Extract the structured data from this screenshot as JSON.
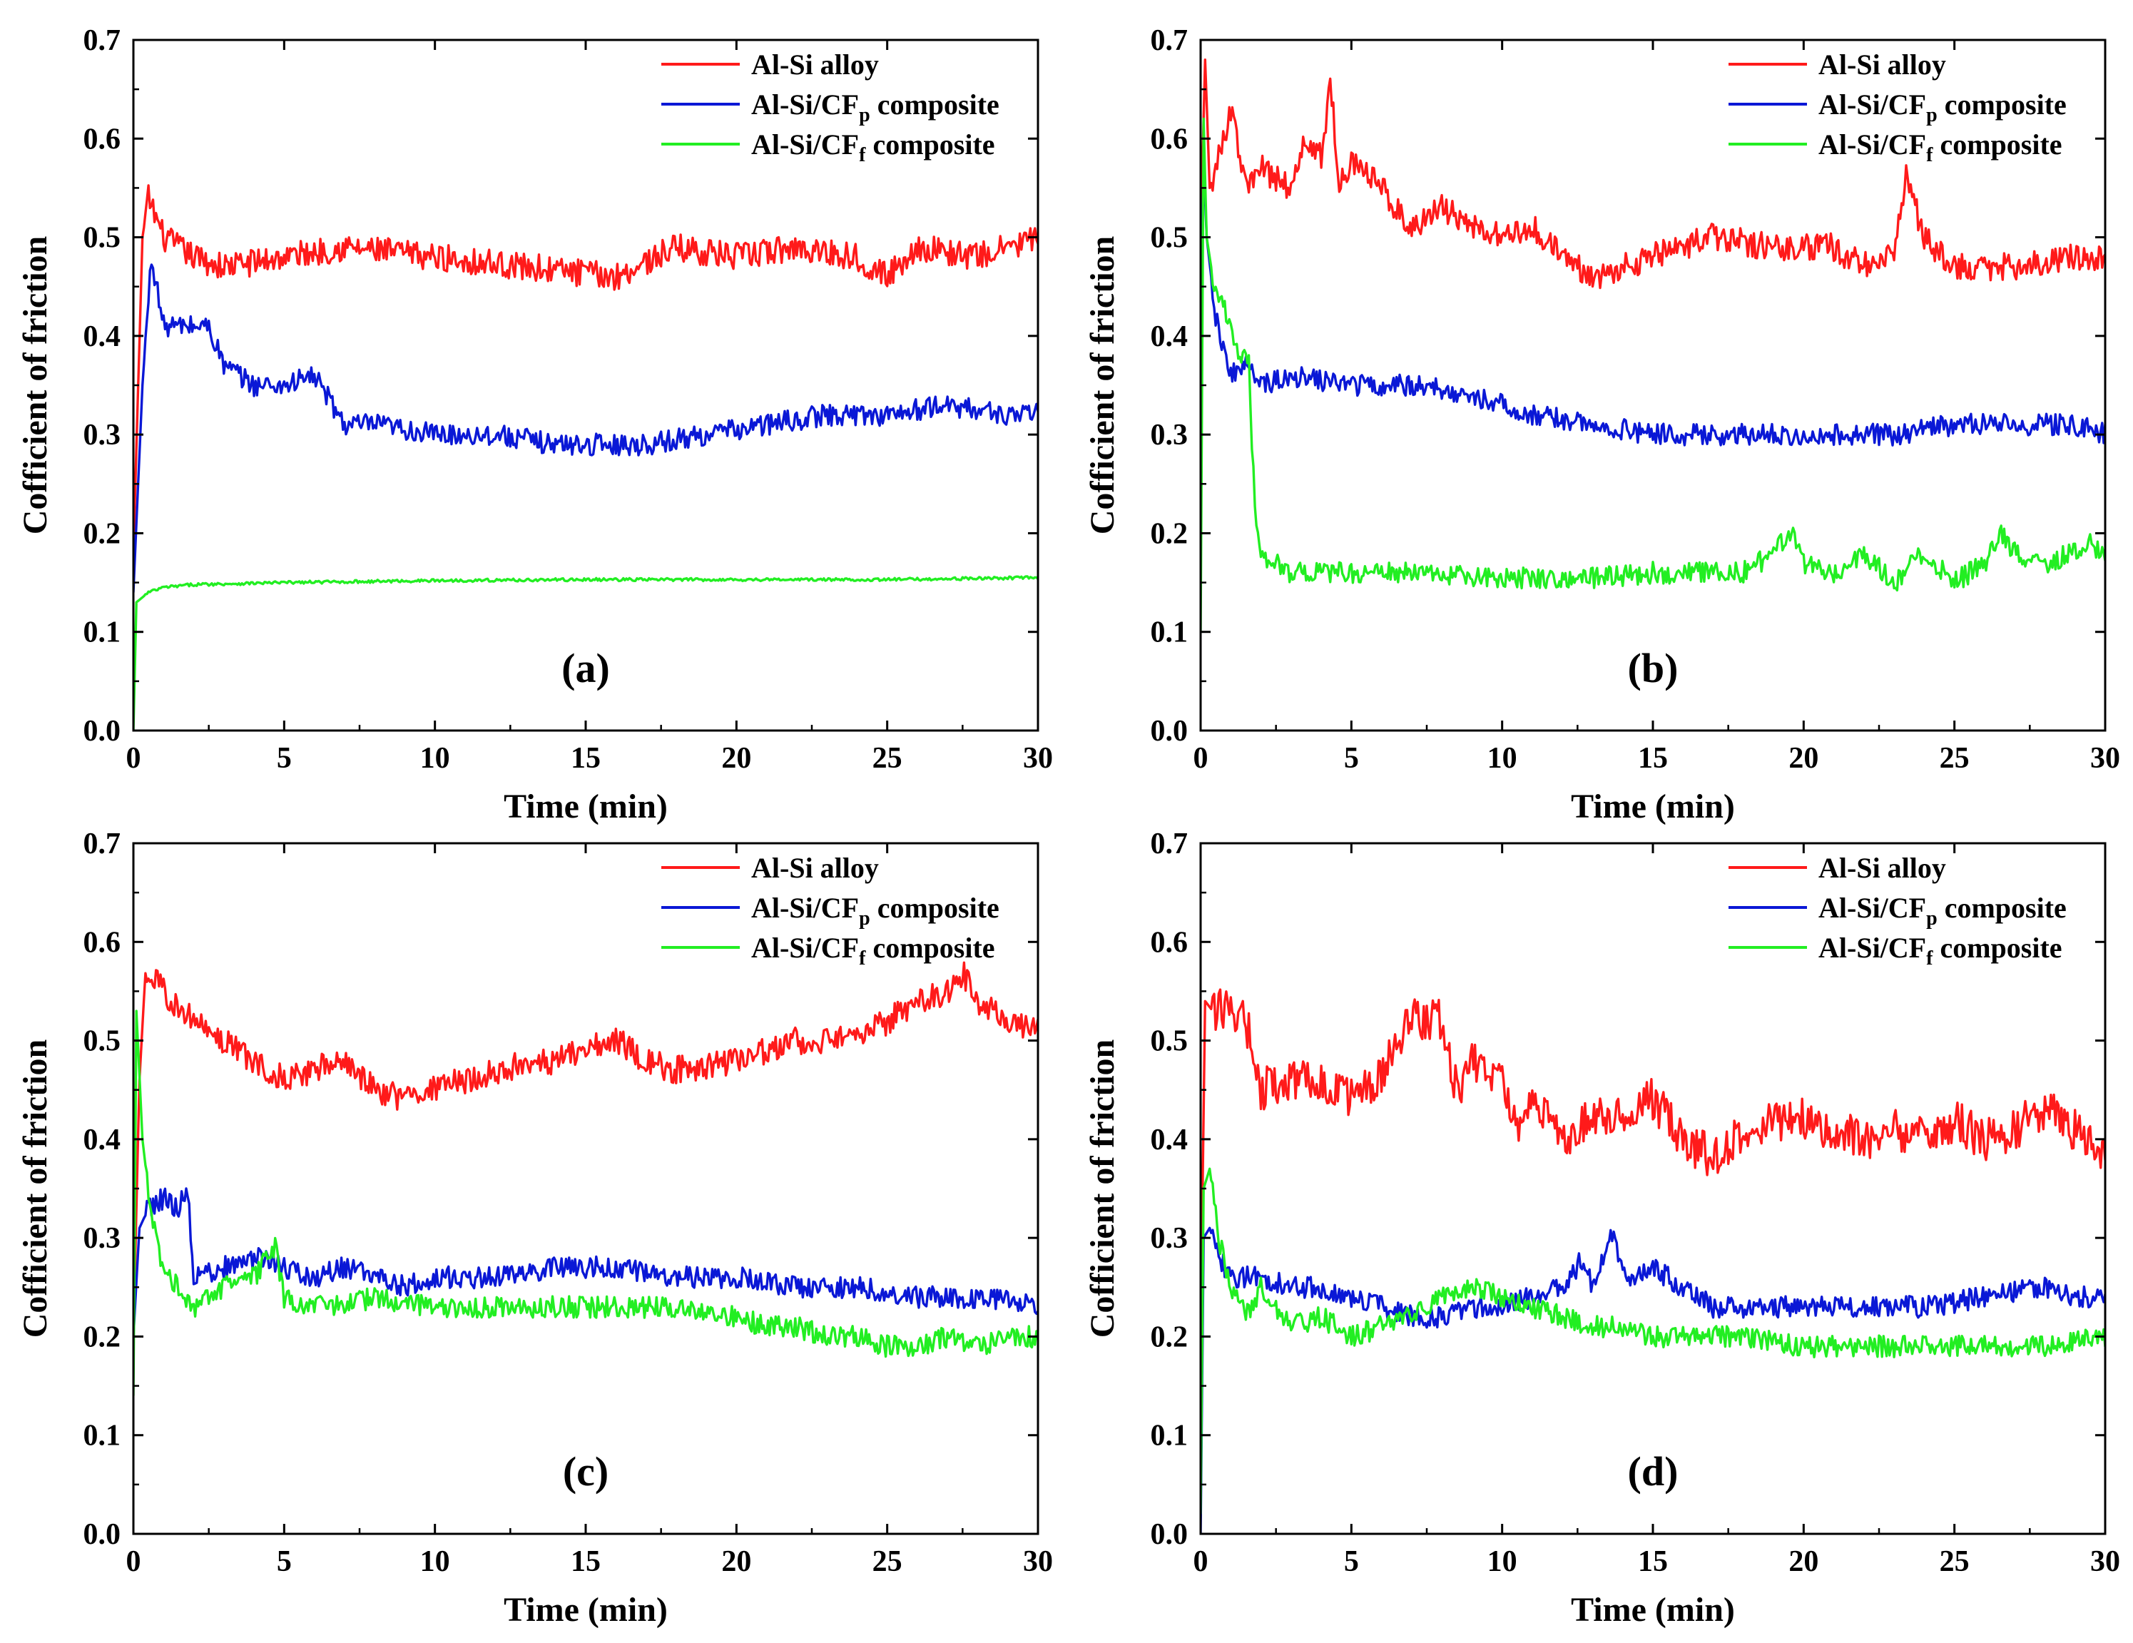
{
  "chart_data": [
    {
      "type": "line",
      "panel": "(a)",
      "xlabel": "Time (min)",
      "ylabel": "Cofficient of friction",
      "xlim": [
        0,
        30
      ],
      "ylim": [
        0,
        0.7
      ],
      "xticks": [
        "0",
        "5",
        "10",
        "15",
        "20",
        "25",
        "30"
      ],
      "yticks": [
        "0.0",
        "0.1",
        "0.2",
        "0.3",
        "0.4",
        "0.5",
        "0.6",
        "0.7"
      ],
      "legend": {
        "position": "top-right"
      },
      "series": [
        {
          "name": "Al-Si alloy",
          "label_main": "Al-Si alloy",
          "label_sub": "",
          "label_tail": "",
          "color": "#ff1a1a",
          "x": [
            0,
            0.3,
            0.5,
            1,
            2,
            3,
            5,
            7,
            10,
            13,
            16,
            18,
            20,
            22,
            24,
            25,
            26,
            28,
            30
          ],
          "y": [
            0.18,
            0.5,
            0.54,
            0.5,
            0.48,
            0.47,
            0.48,
            0.49,
            0.48,
            0.47,
            0.46,
            0.49,
            0.48,
            0.49,
            0.48,
            0.46,
            0.49,
            0.48,
            0.5
          ]
        },
        {
          "name": "Al-Si/CFp composite",
          "label_main": "Al-Si/CF",
          "label_sub": "p",
          "label_tail": " composite",
          "color": "#0a18d6",
          "x": [
            0,
            0.3,
            0.6,
            1,
            2,
            2.5,
            3,
            4,
            5,
            6,
            7,
            8,
            10,
            12,
            14,
            16,
            17,
            19,
            21,
            23,
            25,
            27,
            29,
            30
          ],
          "y": [
            0.14,
            0.35,
            0.48,
            0.41,
            0.41,
            0.41,
            0.37,
            0.35,
            0.35,
            0.36,
            0.31,
            0.31,
            0.3,
            0.3,
            0.29,
            0.29,
            0.29,
            0.3,
            0.31,
            0.32,
            0.32,
            0.33,
            0.32,
            0.32
          ]
        },
        {
          "name": "Al-Si/CFf composite",
          "label_main": "Al-Si/CF",
          "label_sub": "f",
          "label_tail": "  composite",
          "color": "#22ee22",
          "x": [
            0,
            0.1,
            0.5,
            1,
            2,
            5,
            10,
            15,
            20,
            25,
            30
          ],
          "y": [
            0,
            0.13,
            0.14,
            0.145,
            0.148,
            0.15,
            0.152,
            0.153,
            0.153,
            0.153,
            0.155
          ]
        }
      ]
    },
    {
      "type": "line",
      "panel": "(b)",
      "xlabel": "Time (min)",
      "ylabel": "Cofficient of friction",
      "xlim": [
        0,
        30
      ],
      "ylim": [
        0,
        0.7
      ],
      "xticks": [
        "0",
        "5",
        "10",
        "15",
        "20",
        "25",
        "30"
      ],
      "yticks": [
        "0.0",
        "0.1",
        "0.2",
        "0.3",
        "0.4",
        "0.5",
        "0.6",
        "0.7"
      ],
      "legend": {
        "position": "top-right"
      },
      "series": [
        {
          "name": "Al-Si alloy",
          "label_main": "Al-Si alloy",
          "label_sub": "",
          "label_tail": "",
          "color": "#ff1a1a",
          "x": [
            0,
            0.15,
            0.3,
            0.6,
            1,
            1.5,
            2,
            3,
            3.5,
            4,
            4.3,
            4.6,
            5,
            6,
            7,
            8,
            9,
            10,
            11,
            12,
            13,
            15,
            17,
            19,
            21,
            22,
            23,
            23.4,
            24,
            25,
            27,
            29,
            30
          ],
          "y": [
            0.5,
            0.68,
            0.55,
            0.58,
            0.63,
            0.55,
            0.57,
            0.55,
            0.6,
            0.58,
            0.66,
            0.55,
            0.58,
            0.55,
            0.51,
            0.53,
            0.51,
            0.5,
            0.51,
            0.48,
            0.46,
            0.48,
            0.5,
            0.49,
            0.49,
            0.47,
            0.49,
            0.56,
            0.5,
            0.47,
            0.47,
            0.48,
            0.48
          ]
        },
        {
          "name": "Al-Si/CFp composite",
          "label_main": "Al-Si/CF",
          "label_sub": "p",
          "label_tail": " composite",
          "color": "#0a18d6",
          "x": [
            0,
            0.1,
            0.2,
            0.5,
            1,
            1.5,
            2,
            3,
            5,
            7,
            9,
            10,
            11,
            13,
            15,
            17,
            19,
            21,
            23,
            25,
            27,
            29,
            30
          ],
          "y": [
            0.35,
            0.58,
            0.5,
            0.42,
            0.36,
            0.37,
            0.35,
            0.36,
            0.35,
            0.35,
            0.34,
            0.33,
            0.32,
            0.31,
            0.3,
            0.3,
            0.3,
            0.3,
            0.3,
            0.31,
            0.31,
            0.31,
            0.3
          ]
        },
        {
          "name": "Al-Si/CFf composite",
          "label_main": "Al-Si/CF",
          "label_sub": "f",
          "label_tail": "  composite",
          "color": "#22ee22",
          "x": [
            0,
            0.1,
            0.2,
            0.4,
            0.6,
            1,
            1.3,
            1.6,
            1.8,
            2,
            2.5,
            3,
            5,
            7,
            9,
            11,
            13,
            15,
            17,
            18,
            19,
            19.6,
            20,
            21,
            22,
            23,
            24,
            25,
            26,
            26.5,
            27,
            28,
            29,
            29.5,
            30
          ],
          "y": [
            0.1,
            0.62,
            0.5,
            0.46,
            0.44,
            0.41,
            0.38,
            0.37,
            0.22,
            0.18,
            0.17,
            0.16,
            0.16,
            0.16,
            0.155,
            0.155,
            0.155,
            0.16,
            0.16,
            0.16,
            0.18,
            0.2,
            0.17,
            0.16,
            0.18,
            0.15,
            0.18,
            0.15,
            0.17,
            0.2,
            0.18,
            0.17,
            0.18,
            0.19,
            0.175
          ]
        }
      ]
    },
    {
      "type": "line",
      "panel": "(c)",
      "xlabel": "Time (min)",
      "ylabel": "Cofficient of friction",
      "xlim": [
        0,
        30
      ],
      "ylim": [
        0,
        0.7
      ],
      "xticks": [
        "0",
        "5",
        "10",
        "15",
        "20",
        "25",
        "30"
      ],
      "yticks": [
        "0.0",
        "0.1",
        "0.2",
        "0.3",
        "0.4",
        "0.5",
        "0.6",
        "0.7"
      ],
      "legend": {
        "position": "top-right"
      },
      "series": [
        {
          "name": "Al-Si alloy",
          "label_main": "Al-Si alloy",
          "label_sub": "",
          "label_tail": "",
          "color": "#ff1a1a",
          "x": [
            0,
            0.2,
            0.4,
            1,
            2,
            3,
            4,
            5,
            6,
            7,
            8,
            9,
            10,
            12,
            14,
            16,
            17,
            18,
            20,
            22,
            24,
            25,
            26,
            27,
            27.5,
            28,
            29,
            30
          ],
          "y": [
            0.2,
            0.46,
            0.57,
            0.55,
            0.52,
            0.5,
            0.48,
            0.46,
            0.47,
            0.48,
            0.45,
            0.44,
            0.45,
            0.47,
            0.48,
            0.5,
            0.48,
            0.47,
            0.48,
            0.5,
            0.5,
            0.52,
            0.54,
            0.55,
            0.57,
            0.54,
            0.52,
            0.51
          ]
        },
        {
          "name": "Al-Si/CFp composite",
          "label_main": "Al-Si/CF",
          "label_sub": "p",
          "label_tail": " composite",
          "color": "#0a18d6",
          "x": [
            0,
            0.2,
            0.5,
            1,
            1.5,
            1.8,
            2,
            3,
            4,
            5,
            6,
            7,
            8,
            9,
            10,
            12,
            14,
            16,
            18,
            20,
            22,
            24,
            26,
            28,
            30
          ],
          "y": [
            0.2,
            0.31,
            0.33,
            0.34,
            0.33,
            0.35,
            0.26,
            0.27,
            0.28,
            0.27,
            0.26,
            0.27,
            0.26,
            0.25,
            0.26,
            0.26,
            0.27,
            0.27,
            0.26,
            0.26,
            0.25,
            0.25,
            0.24,
            0.24,
            0.23
          ]
        },
        {
          "name": "Al-Si/CFf composite",
          "label_main": "Al-Si/CF",
          "label_sub": "f",
          "label_tail": "  composite",
          "color": "#22ee22",
          "x": [
            0,
            0.1,
            0.3,
            0.6,
            1,
            1.5,
            2,
            3,
            4,
            4.7,
            5,
            6,
            7,
            8,
            10,
            12,
            14,
            16,
            18,
            20,
            21,
            22,
            23,
            24,
            25,
            26,
            27,
            28,
            29,
            30
          ],
          "y": [
            0.14,
            0.53,
            0.4,
            0.32,
            0.27,
            0.25,
            0.23,
            0.25,
            0.26,
            0.29,
            0.24,
            0.23,
            0.23,
            0.24,
            0.23,
            0.23,
            0.23,
            0.23,
            0.23,
            0.22,
            0.21,
            0.21,
            0.2,
            0.2,
            0.19,
            0.19,
            0.2,
            0.19,
            0.2,
            0.2
          ]
        }
      ]
    },
    {
      "type": "line",
      "panel": "(d)",
      "xlabel": "Time (min)",
      "ylabel": "Cofficient of friction",
      "xlim": [
        0,
        30
      ],
      "ylim": [
        0,
        0.7
      ],
      "xticks": [
        "0",
        "5",
        "10",
        "15",
        "20",
        "25",
        "30"
      ],
      "yticks": [
        "0.0",
        "0.1",
        "0.2",
        "0.3",
        "0.4",
        "0.5",
        "0.6",
        "0.7"
      ],
      "legend": {
        "position": "top-right"
      },
      "series": [
        {
          "name": "Al-Si alloy",
          "label_main": "Al-Si alloy",
          "label_sub": "",
          "label_tail": "",
          "color": "#ff1a1a",
          "x": [
            0,
            0.15,
            0.4,
            1,
            1.5,
            2,
            3,
            4,
            5,
            6,
            6.5,
            7,
            8,
            8.5,
            9,
            10,
            10.5,
            11,
            12,
            13,
            14,
            15,
            16,
            17,
            18,
            19,
            20,
            21,
            22,
            23,
            24,
            25,
            26,
            27,
            28,
            29,
            30
          ],
          "y": [
            0.2,
            0.54,
            0.53,
            0.53,
            0.52,
            0.45,
            0.46,
            0.46,
            0.44,
            0.46,
            0.5,
            0.52,
            0.52,
            0.45,
            0.48,
            0.46,
            0.4,
            0.44,
            0.4,
            0.42,
            0.42,
            0.44,
            0.4,
            0.38,
            0.41,
            0.42,
            0.42,
            0.41,
            0.4,
            0.41,
            0.4,
            0.42,
            0.4,
            0.41,
            0.43,
            0.41,
            0.39
          ]
        },
        {
          "name": "Al-Si/CFp composite",
          "label_main": "Al-Si/CF",
          "label_sub": "p",
          "label_tail": " composite",
          "color": "#0a18d6",
          "x": [
            0,
            0.1,
            0.3,
            0.6,
            1,
            2,
            3,
            4,
            5,
            6,
            7,
            8,
            9,
            10,
            11,
            12,
            12.7,
            13,
            13.7,
            14,
            15,
            16,
            17,
            18,
            20,
            22,
            24,
            26,
            28,
            29,
            30
          ],
          "y": [
            0,
            0.3,
            0.31,
            0.28,
            0.26,
            0.26,
            0.25,
            0.25,
            0.24,
            0.23,
            0.22,
            0.22,
            0.23,
            0.23,
            0.24,
            0.25,
            0.28,
            0.25,
            0.31,
            0.26,
            0.27,
            0.25,
            0.23,
            0.23,
            0.23,
            0.23,
            0.23,
            0.24,
            0.25,
            0.24,
            0.24
          ]
        },
        {
          "name": "Al-Si/CFf composite",
          "label_main": "Al-Si/CF",
          "label_sub": "f",
          "label_tail": "  composite",
          "color": "#22ee22",
          "x": [
            0,
            0.1,
            0.3,
            0.6,
            1,
            1.5,
            2,
            3,
            4,
            5,
            6,
            7,
            8,
            9,
            10,
            11,
            12,
            13,
            14,
            15,
            16,
            18,
            20,
            22,
            24,
            26,
            28,
            30
          ],
          "y": [
            0.02,
            0.35,
            0.37,
            0.3,
            0.25,
            0.22,
            0.25,
            0.21,
            0.22,
            0.2,
            0.21,
            0.22,
            0.24,
            0.25,
            0.24,
            0.23,
            0.22,
            0.21,
            0.21,
            0.2,
            0.2,
            0.2,
            0.19,
            0.19,
            0.19,
            0.19,
            0.19,
            0.2
          ]
        }
      ]
    }
  ]
}
